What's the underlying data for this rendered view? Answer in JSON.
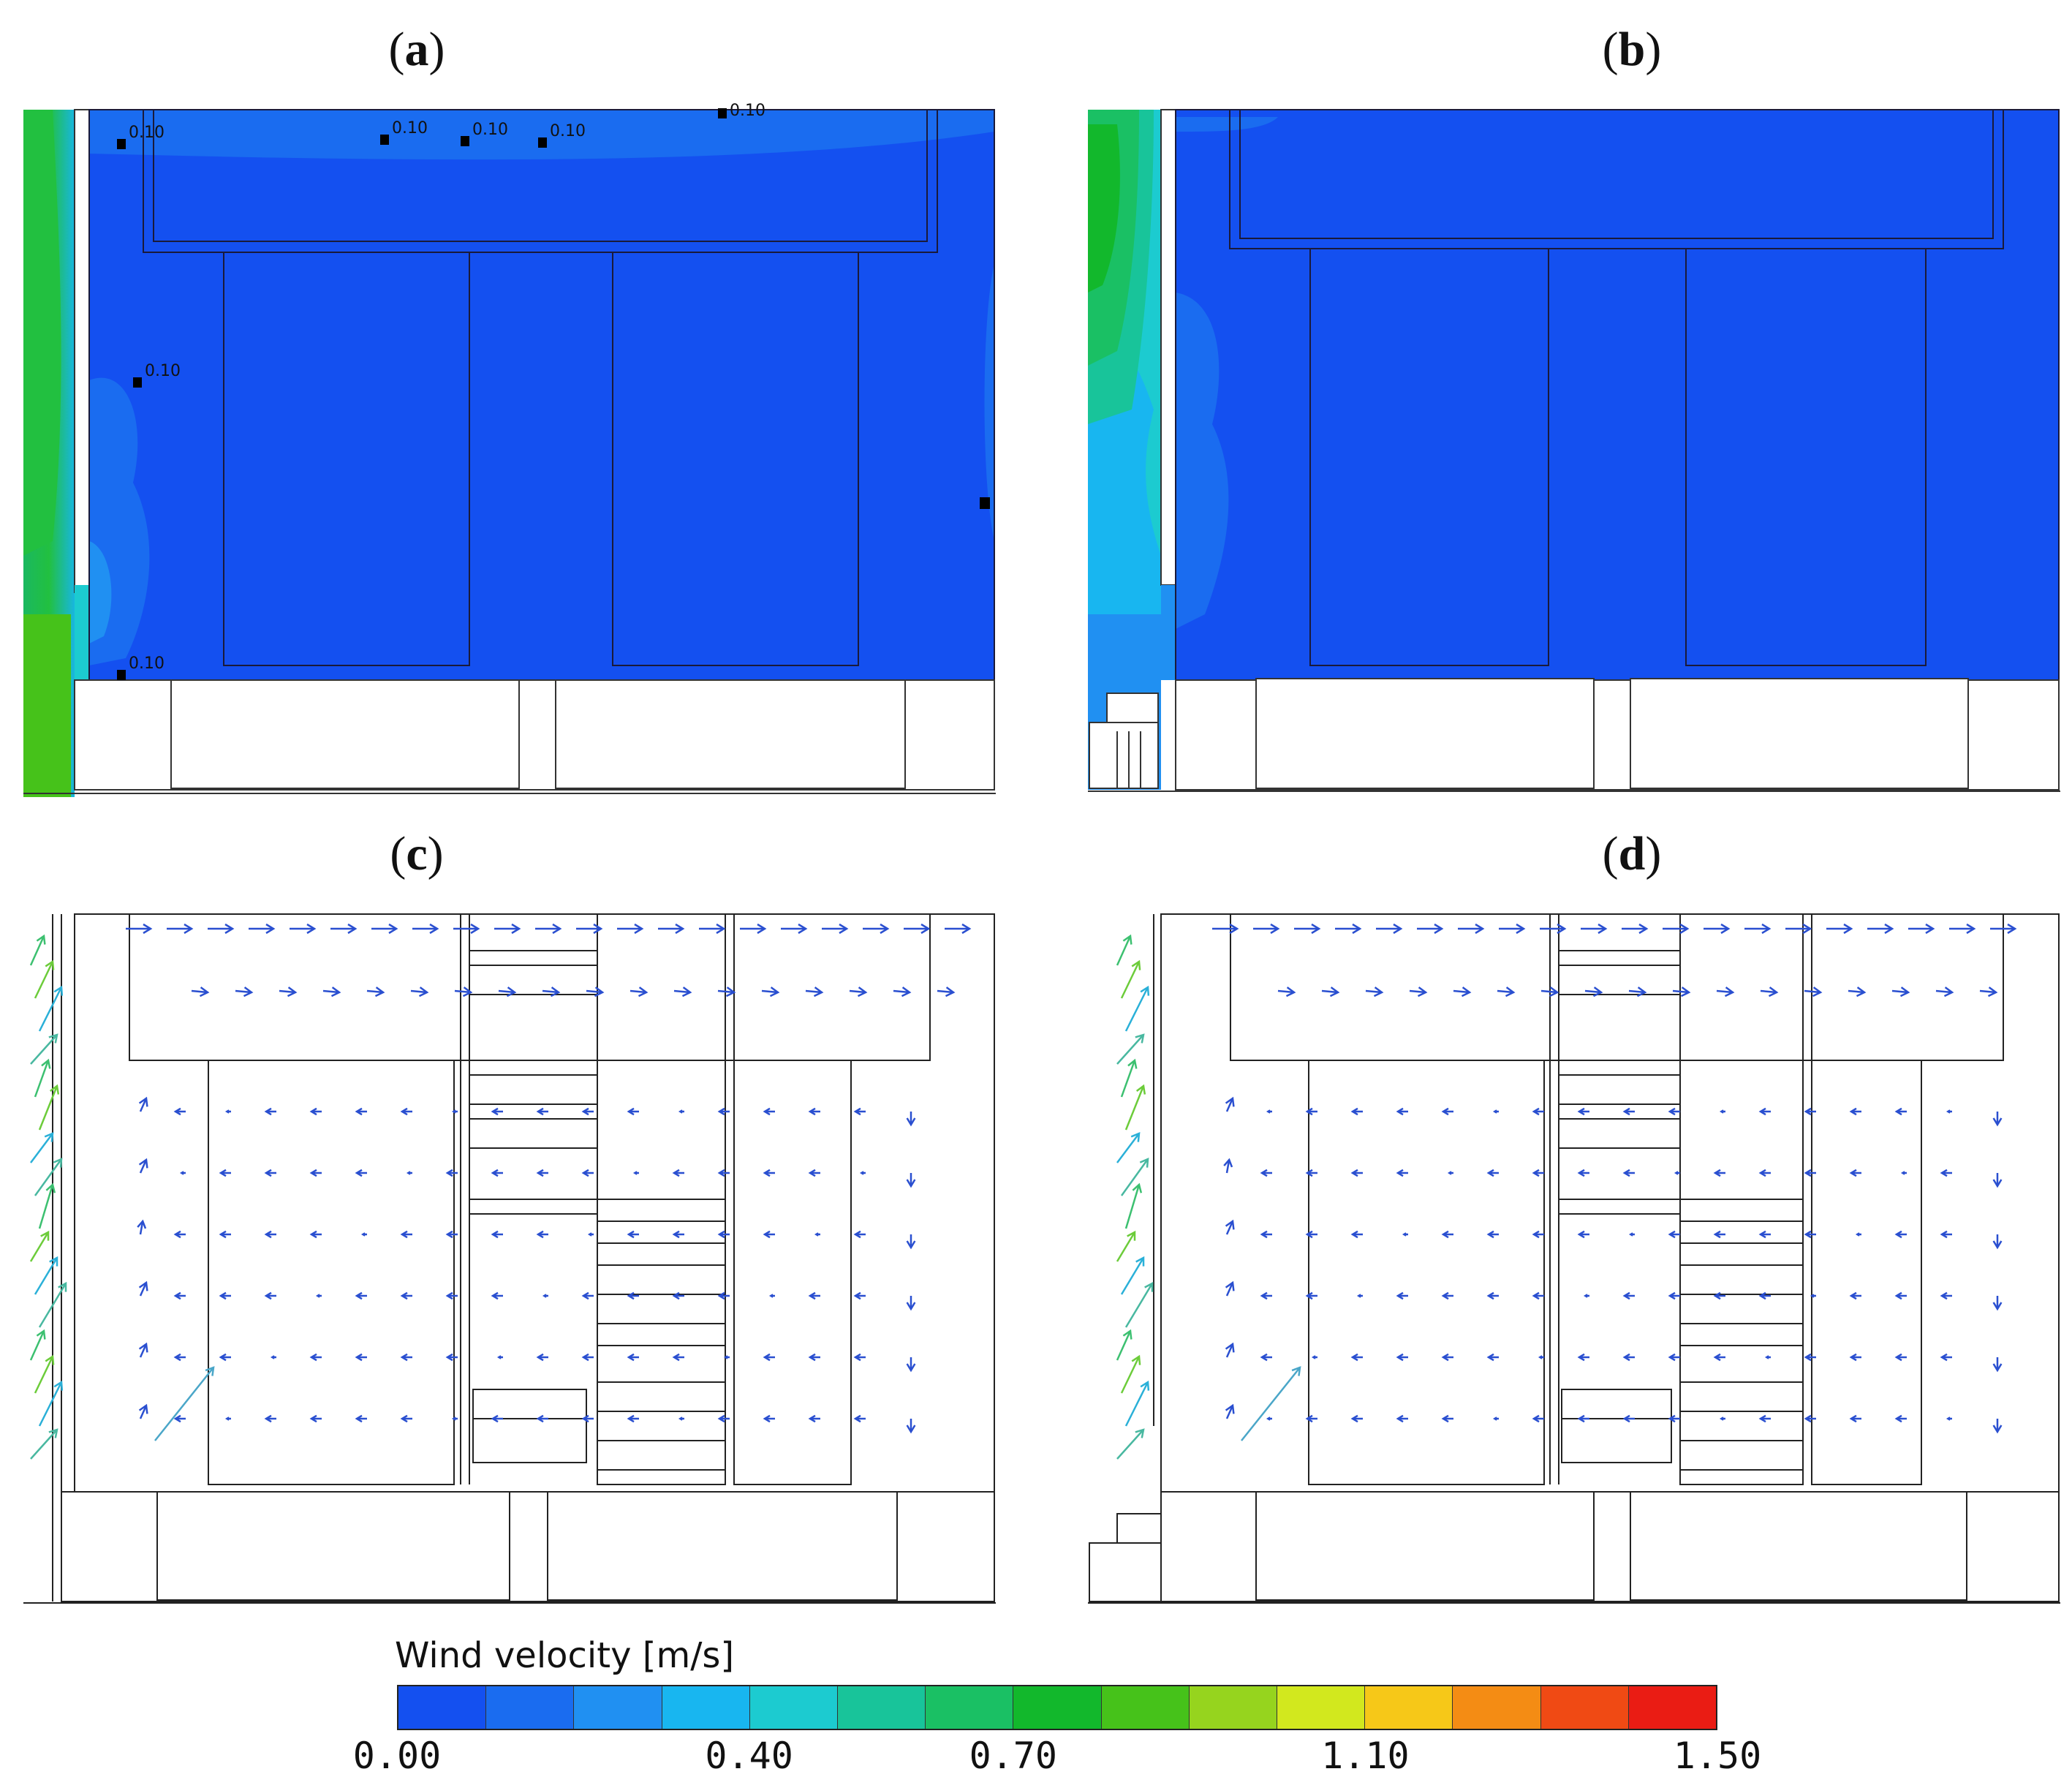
{
  "panels": [
    {
      "id": "a",
      "label": "a"
    },
    {
      "id": "b",
      "label": "b"
    },
    {
      "id": "c",
      "label": "c"
    },
    {
      "id": "d",
      "label": "d"
    }
  ],
  "contour_labels_a": [
    "0.10",
    "0.10",
    "0.10",
    "0.10",
    "0.10",
    "0.10",
    "0.10"
  ],
  "legend": {
    "title": "Wind velocity [m/s]",
    "ticks": [
      {
        "label": "0.00",
        "value": 0.0
      },
      {
        "label": "0.40",
        "value": 0.4
      },
      {
        "label": "0.70",
        "value": 0.7
      },
      {
        "label": "1.10",
        "value": 1.1
      },
      {
        "label": "1.50",
        "value": 1.5
      }
    ],
    "colors": [
      "#1450f0",
      "#1a6cf0",
      "#2090f2",
      "#18b6f0",
      "#1ccbd0",
      "#18c49a",
      "#1ac064",
      "#12b82c",
      "#46c21a",
      "#96d41e",
      "#d2e81e",
      "#f6c818",
      "#f48c14",
      "#f04a14",
      "#ea1c14"
    ]
  }
}
